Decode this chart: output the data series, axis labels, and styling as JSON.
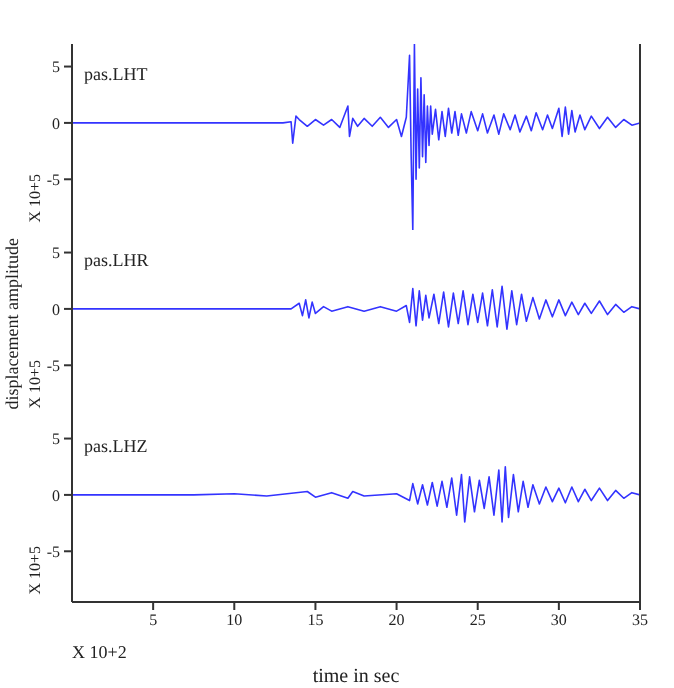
{
  "chart_data": [
    {
      "type": "line",
      "title": "pas.LHT",
      "annotations": [
        "X 10+5"
      ],
      "xlim": [
        0,
        35
      ],
      "xticks": [
        5,
        10,
        15,
        20,
        25,
        30,
        35
      ],
      "ylim": [
        -9.5,
        7
      ],
      "yticks": [
        -5,
        0,
        5
      ],
      "tick_labels": "y",
      "marker": "none",
      "series": [
        {
          "color": "#3333ff",
          "x": [
            0,
            5,
            10,
            13,
            13.5,
            13.6,
            13.8,
            14,
            14.5,
            15,
            15.5,
            16,
            16.5,
            17,
            17.1,
            17.3,
            17.6,
            18,
            18.5,
            19,
            19.5,
            20,
            20.3,
            20.6,
            20.8,
            20.9,
            21,
            21.1,
            21.2,
            21.3,
            21.4,
            21.5,
            21.6,
            21.7,
            21.8,
            21.9,
            22,
            22.1,
            22.2,
            22.4,
            22.6,
            22.8,
            23,
            23.2,
            23.4,
            23.6,
            23.8,
            24,
            24.3,
            24.6,
            25,
            25.3,
            25.6,
            26,
            26.3,
            26.6,
            27,
            27.3,
            27.6,
            28,
            28.3,
            28.6,
            29,
            29.3,
            29.6,
            30,
            30.2,
            30.4,
            30.6,
            30.8,
            31,
            31.3,
            31.6,
            32,
            32.5,
            33,
            33.5,
            34,
            34.5,
            35
          ],
          "values": [
            0,
            0,
            0,
            0,
            0.1,
            -1.8,
            0.6,
            0.3,
            -0.3,
            0.3,
            -0.2,
            0.3,
            -0.4,
            1.5,
            -1.2,
            0.4,
            -0.3,
            0.4,
            -0.3,
            0.5,
            -0.4,
            0.3,
            -1.2,
            0.5,
            6,
            -3,
            -9.5,
            7,
            -5,
            3,
            -4,
            4,
            -3,
            2.5,
            -3.5,
            1.5,
            -2,
            1.5,
            -1,
            1.2,
            -1.5,
            1,
            -1.2,
            1.3,
            -0.9,
            1,
            -1.1,
            0.8,
            -0.9,
            1,
            -0.7,
            0.8,
            -0.9,
            0.7,
            -1,
            0.8,
            -0.6,
            0.7,
            -0.8,
            0.6,
            -0.7,
            0.9,
            -0.6,
            0.7,
            -0.5,
            1.3,
            -1.2,
            1.4,
            -1,
            1.1,
            -0.8,
            0.7,
            -0.6,
            0.6,
            -0.5,
            0.5,
            -0.4,
            0.3,
            -0.2,
            0
          ]
        }
      ]
    },
    {
      "type": "line",
      "title": "pas.LHR",
      "ylabel": "displacement  amplitude",
      "annotations": [
        "X 10+5"
      ],
      "xlim": [
        0,
        35
      ],
      "xticks": [
        5,
        10,
        15,
        20,
        25,
        30,
        35
      ],
      "ylim": [
        -9.5,
        7
      ],
      "yticks": [
        -5,
        0,
        5
      ],
      "tick_labels": "y",
      "marker": "none",
      "series": [
        {
          "color": "#3333ff",
          "x": [
            0,
            5,
            10,
            13.5,
            14,
            14.2,
            14.4,
            14.6,
            14.8,
            15,
            15.5,
            16,
            17,
            18,
            19,
            20,
            20.6,
            20.8,
            21,
            21.2,
            21.4,
            21.6,
            21.8,
            22,
            22.3,
            22.6,
            22.9,
            23.2,
            23.5,
            23.8,
            24.1,
            24.4,
            24.7,
            25,
            25.3,
            25.6,
            25.9,
            26.2,
            26.5,
            26.8,
            27.1,
            27.4,
            27.7,
            28,
            28.4,
            28.8,
            29.2,
            29.6,
            30,
            30.4,
            30.8,
            31.2,
            31.6,
            32,
            32.5,
            33,
            33.5,
            34,
            34.5,
            35
          ],
          "values": [
            0,
            0,
            0,
            0,
            0.5,
            -0.6,
            0.8,
            -0.8,
            0.6,
            -0.4,
            0.2,
            -0.2,
            0.2,
            -0.2,
            0.2,
            -0.2,
            0.3,
            -1.2,
            1.8,
            -1.5,
            1.6,
            -1,
            1.2,
            -0.8,
            1.3,
            -1.3,
            1.5,
            -1.6,
            1.4,
            -1.3,
            1.6,
            -1.4,
            1.3,
            -1.2,
            1.4,
            -1.5,
            1.7,
            -1.6,
            2,
            -1.8,
            1.6,
            -1.4,
            1.3,
            -1.1,
            1,
            -0.9,
            0.8,
            -0.7,
            0.8,
            -0.6,
            0.6,
            -0.5,
            0.5,
            -0.4,
            0.7,
            -0.5,
            0.4,
            -0.3,
            0.2,
            0
          ]
        }
      ]
    },
    {
      "type": "line",
      "title": "pas.LHZ",
      "xlabel": "time in sec",
      "annotations": [
        "X 10+5",
        "X 10+2"
      ],
      "xlim": [
        0,
        35
      ],
      "xticks": [
        5,
        10,
        15,
        20,
        25,
        30,
        35
      ],
      "ylim": [
        -9.5,
        7
      ],
      "yticks": [
        -5,
        0,
        5
      ],
      "marker": "none",
      "series": [
        {
          "color": "#3333ff",
          "x": [
            0,
            7.5,
            10,
            12,
            14.5,
            15,
            16,
            17,
            17.3,
            18,
            20,
            20.8,
            21,
            21.3,
            21.6,
            21.9,
            22.2,
            22.5,
            22.8,
            23.1,
            23.4,
            23.7,
            24,
            24.2,
            24.5,
            24.8,
            25.1,
            25.4,
            25.7,
            26,
            26.3,
            26.5,
            26.7,
            26.9,
            27.2,
            27.5,
            27.8,
            28.1,
            28.4,
            28.8,
            29.2,
            29.6,
            30,
            30.4,
            30.8,
            31.2,
            31.6,
            32,
            32.5,
            33,
            33.5,
            34,
            34.5,
            35
          ],
          "values": [
            0,
            0,
            0.1,
            -0.1,
            0.3,
            -0.2,
            0.2,
            -0.3,
            0.3,
            -0.1,
            0.1,
            -0.5,
            1,
            -0.8,
            0.9,
            -0.9,
            1.1,
            -1,
            1.2,
            -1.1,
            1.5,
            -1.8,
            1.8,
            -2.4,
            1.6,
            -1.5,
            1.3,
            -1.2,
            1.6,
            -1.8,
            2.2,
            -2.4,
            2.5,
            -2,
            1.8,
            -1.5,
            1.2,
            -1.1,
            0.9,
            -0.8,
            0.7,
            -0.6,
            0.6,
            -0.7,
            0.7,
            -0.6,
            0.5,
            -0.5,
            0.6,
            -0.5,
            0.4,
            -0.3,
            0.2,
            0
          ]
        }
      ]
    }
  ]
}
